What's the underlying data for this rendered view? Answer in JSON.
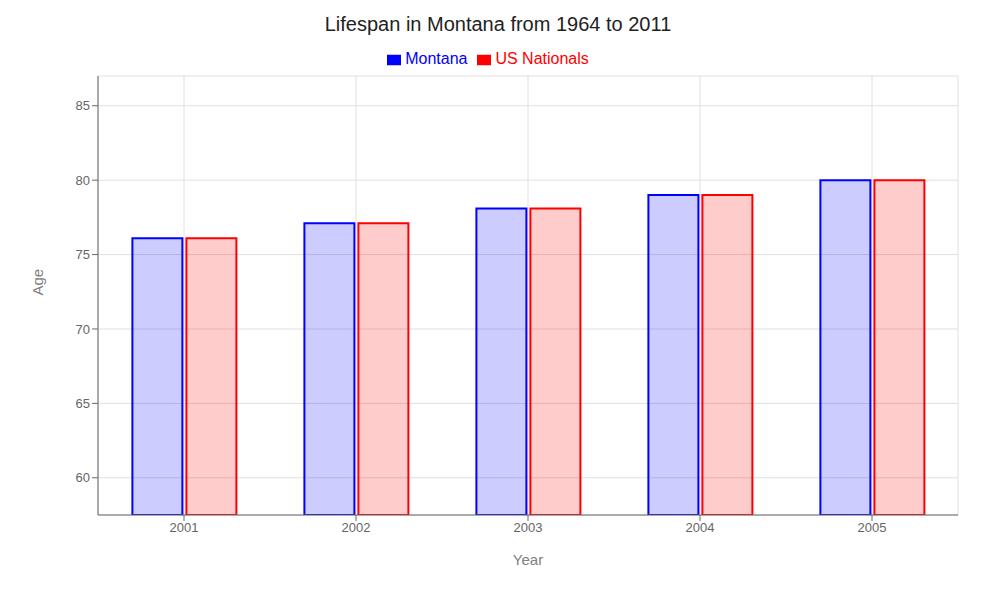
{
  "chart_data": {
    "type": "bar",
    "title": "Lifespan in Montana from 1964 to 2011",
    "x_label": "Year",
    "y_label": "Age",
    "categories": [
      "2001",
      "2002",
      "2003",
      "2004",
      "2005"
    ],
    "series": [
      {
        "name": "Montana",
        "color": "#0000ff",
        "values": [
          76.1,
          77.1,
          78.1,
          79.0,
          80.0
        ]
      },
      {
        "name": "US Nationals",
        "color": "#ff0000",
        "values": [
          76.1,
          77.1,
          78.1,
          79.0,
          80.0
        ]
      }
    ],
    "ylim": [
      57.5,
      87
    ],
    "yticks": [
      60,
      65,
      70,
      75,
      80,
      85
    ],
    "grid": true,
    "legend": "top"
  }
}
